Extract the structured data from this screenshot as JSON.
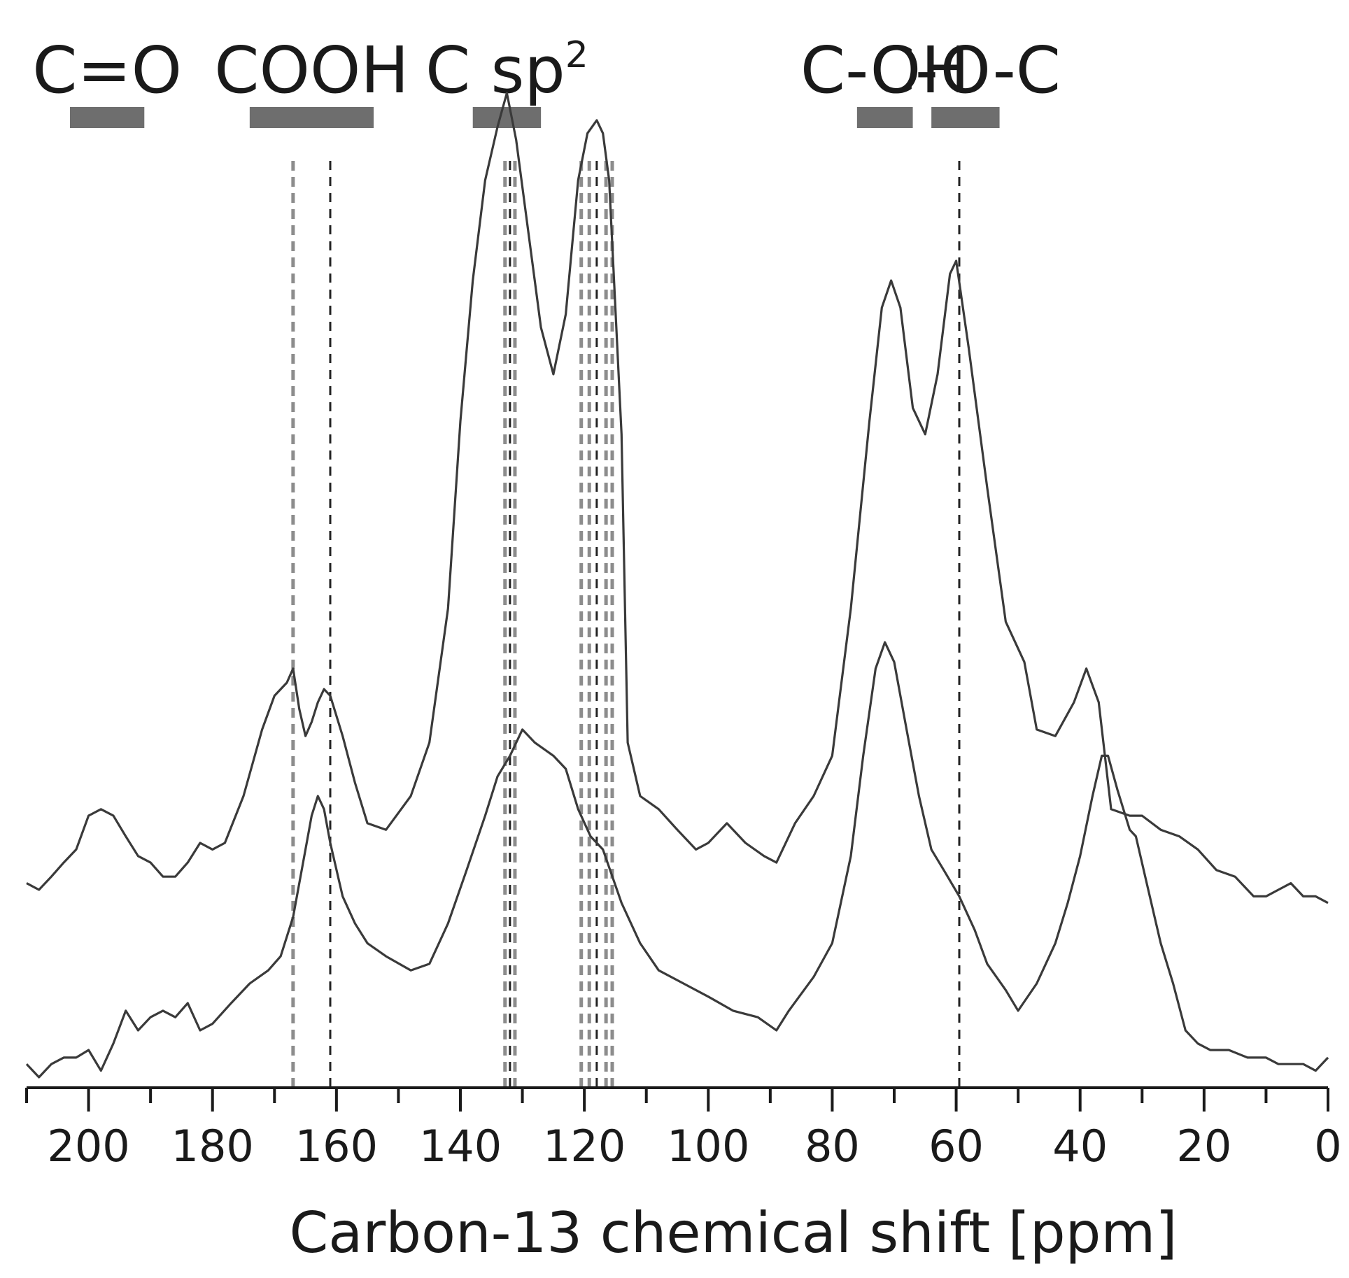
{
  "chart_data": {
    "type": "line",
    "xlabel": "Carbon-13 chemical shift [ppm]",
    "ylabel": "",
    "title": "",
    "xlim": [
      210,
      0
    ],
    "x_reversed": true,
    "x_ticks": [
      200,
      180,
      160,
      140,
      120,
      100,
      80,
      60,
      40,
      20,
      0
    ],
    "x_tick_labels": [
      "200",
      "180",
      "160",
      "140",
      "120",
      "100",
      "80",
      "60",
      "40",
      "20",
      "0"
    ],
    "x_minor_step": 10,
    "grid": false,
    "legend": "none",
    "regions": [
      {
        "label": "C=O",
        "superscript": "",
        "range": [
          203,
          191
        ],
        "color": "#6e6e6e"
      },
      {
        "label": "COOH",
        "superscript": "",
        "range": [
          174,
          154
        ],
        "color": "#6e6e6e"
      },
      {
        "label": "C sp",
        "superscript": "2",
        "range": [
          138,
          127
        ],
        "color": "#6e6e6e"
      },
      {
        "label": "C-OH",
        "superscript": "",
        "range": [
          76,
          67
        ],
        "color": "#6e6e6e"
      },
      {
        "label": "C-O-C",
        "superscript": "",
        "range": [
          64,
          53
        ],
        "color": "#6e6e6e"
      }
    ],
    "reference_lines": [
      {
        "x": 167,
        "style": "gray-dashed"
      },
      {
        "x": 161,
        "style": "black-dashed"
      },
      {
        "x": 132.8,
        "style": "gray-dashed"
      },
      {
        "x": 132,
        "style": "black-dashed"
      },
      {
        "x": 131.2,
        "style": "gray-dashed"
      },
      {
        "x": 120.5,
        "style": "gray-dashed"
      },
      {
        "x": 119.2,
        "style": "gray-dashed"
      },
      {
        "x": 118,
        "style": "black-dashed"
      },
      {
        "x": 116.5,
        "style": "gray-dashed"
      },
      {
        "x": 115.5,
        "style": "gray-dashed"
      },
      {
        "x": 59.5,
        "style": "black-dashed"
      }
    ],
    "series": [
      {
        "color": "#3a3a3a",
        "points": [
          [
            210,
            0.207
          ],
          [
            208,
            0.2
          ],
          [
            206,
            0.214
          ],
          [
            204,
            0.229
          ],
          [
            202,
            0.243
          ],
          [
            200,
            0.279
          ],
          [
            198,
            0.286
          ],
          [
            196,
            0.279
          ],
          [
            194,
            0.257
          ],
          [
            192,
            0.236
          ],
          [
            190,
            0.229
          ],
          [
            188,
            0.214
          ],
          [
            186,
            0.214
          ],
          [
            184,
            0.229
          ],
          [
            182,
            0.25
          ],
          [
            180,
            0.243
          ],
          [
            178,
            0.25
          ],
          [
            175,
            0.3
          ],
          [
            172,
            0.371
          ],
          [
            170,
            0.407
          ],
          [
            168,
            0.421
          ],
          [
            167,
            0.436
          ],
          [
            166,
            0.393
          ],
          [
            165,
            0.364
          ],
          [
            164,
            0.379
          ],
          [
            163,
            0.4
          ],
          [
            162,
            0.414
          ],
          [
            161,
            0.407
          ],
          [
            159,
            0.364
          ],
          [
            157,
            0.314
          ],
          [
            155,
            0.271
          ],
          [
            152,
            0.264
          ],
          [
            148,
            0.3
          ],
          [
            145,
            0.357
          ],
          [
            142,
            0.5
          ],
          [
            140,
            0.7
          ],
          [
            138,
            0.85
          ],
          [
            136,
            0.957
          ],
          [
            134,
            1.014
          ],
          [
            132.5,
            1.05
          ],
          [
            131,
            1.0
          ],
          [
            129,
            0.9
          ],
          [
            127,
            0.8
          ],
          [
            125,
            0.75
          ],
          [
            123,
            0.814
          ],
          [
            121,
            0.957
          ],
          [
            119.5,
            1.007
          ],
          [
            118,
            1.021
          ],
          [
            117,
            1.007
          ],
          [
            116,
            0.957
          ],
          [
            114,
            0.686
          ],
          [
            113,
            0.357
          ],
          [
            111,
            0.3
          ],
          [
            108,
            0.286
          ],
          [
            105,
            0.264
          ],
          [
            102,
            0.243
          ],
          [
            100,
            0.25
          ],
          [
            97,
            0.271
          ],
          [
            94,
            0.25
          ],
          [
            91,
            0.236
          ],
          [
            89,
            0.229
          ],
          [
            86,
            0.271
          ],
          [
            83,
            0.3
          ],
          [
            80,
            0.343
          ],
          [
            77,
            0.5
          ],
          [
            74,
            0.7
          ],
          [
            72,
            0.821
          ],
          [
            70.5,
            0.85
          ],
          [
            69,
            0.821
          ],
          [
            67,
            0.714
          ],
          [
            65,
            0.686
          ],
          [
            63,
            0.75
          ],
          [
            61,
            0.857
          ],
          [
            60,
            0.871
          ],
          [
            58,
            0.779
          ],
          [
            55,
            0.629
          ],
          [
            52,
            0.486
          ],
          [
            49,
            0.443
          ],
          [
            47,
            0.371
          ],
          [
            44,
            0.364
          ],
          [
            41,
            0.4
          ],
          [
            39,
            0.436
          ],
          [
            37,
            0.4
          ],
          [
            35,
            0.286
          ],
          [
            32,
            0.279
          ],
          [
            30,
            0.279
          ],
          [
            27,
            0.264
          ],
          [
            24,
            0.257
          ],
          [
            21,
            0.243
          ],
          [
            18,
            0.221
          ],
          [
            15,
            0.214
          ],
          [
            12,
            0.193
          ],
          [
            10,
            0.193
          ],
          [
            8,
            0.2
          ],
          [
            6,
            0.207
          ],
          [
            4,
            0.193
          ],
          [
            2,
            0.193
          ],
          [
            0,
            0.186
          ]
        ]
      },
      {
        "color": "#3a3a3a",
        "points": [
          [
            210,
            0.014
          ],
          [
            208,
            0.0
          ],
          [
            206,
            0.014
          ],
          [
            204,
            0.021
          ],
          [
            202,
            0.021
          ],
          [
            200,
            0.029
          ],
          [
            198,
            0.007
          ],
          [
            196,
            0.036
          ],
          [
            194,
            0.071
          ],
          [
            192,
            0.05
          ],
          [
            190,
            0.064
          ],
          [
            188,
            0.071
          ],
          [
            186,
            0.064
          ],
          [
            184,
            0.079
          ],
          [
            182,
            0.05
          ],
          [
            180,
            0.057
          ],
          [
            177,
            0.079
          ],
          [
            174,
            0.1
          ],
          [
            171,
            0.114
          ],
          [
            169,
            0.129
          ],
          [
            167,
            0.171
          ],
          [
            165,
            0.243
          ],
          [
            164,
            0.279
          ],
          [
            163,
            0.3
          ],
          [
            162,
            0.286
          ],
          [
            161,
            0.25
          ],
          [
            159,
            0.193
          ],
          [
            157,
            0.164
          ],
          [
            155,
            0.143
          ],
          [
            152,
            0.129
          ],
          [
            148,
            0.114
          ],
          [
            145,
            0.121
          ],
          [
            142,
            0.164
          ],
          [
            139,
            0.221
          ],
          [
            136,
            0.279
          ],
          [
            134,
            0.321
          ],
          [
            132,
            0.343
          ],
          [
            130,
            0.371
          ],
          [
            128,
            0.357
          ],
          [
            125,
            0.343
          ],
          [
            123,
            0.329
          ],
          [
            121,
            0.286
          ],
          [
            119,
            0.257
          ],
          [
            117,
            0.243
          ],
          [
            114,
            0.186
          ],
          [
            111,
            0.143
          ],
          [
            108,
            0.114
          ],
          [
            104,
            0.1
          ],
          [
            100,
            0.086
          ],
          [
            96,
            0.071
          ],
          [
            92,
            0.064
          ],
          [
            89,
            0.05
          ],
          [
            87,
            0.071
          ],
          [
            83,
            0.107
          ],
          [
            80,
            0.143
          ],
          [
            77,
            0.236
          ],
          [
            75,
            0.343
          ],
          [
            73,
            0.436
          ],
          [
            71.5,
            0.464
          ],
          [
            70,
            0.443
          ],
          [
            68,
            0.371
          ],
          [
            66,
            0.3
          ],
          [
            64,
            0.243
          ],
          [
            62,
            0.221
          ],
          [
            59.5,
            0.193
          ],
          [
            57,
            0.157
          ],
          [
            55,
            0.121
          ],
          [
            52,
            0.093
          ],
          [
            50,
            0.071
          ],
          [
            47,
            0.1
          ],
          [
            44,
            0.143
          ],
          [
            42,
            0.186
          ],
          [
            40,
            0.236
          ],
          [
            38,
            0.3
          ],
          [
            36.5,
            0.343
          ],
          [
            35.5,
            0.343
          ],
          [
            34,
            0.307
          ],
          [
            32,
            0.264
          ],
          [
            31,
            0.257
          ],
          [
            29,
            0.2
          ],
          [
            27,
            0.143
          ],
          [
            25,
            0.1
          ],
          [
            23,
            0.05
          ],
          [
            21,
            0.036
          ],
          [
            19,
            0.029
          ],
          [
            16,
            0.029
          ],
          [
            13,
            0.021
          ],
          [
            10,
            0.021
          ],
          [
            8,
            0.014
          ],
          [
            6,
            0.014
          ],
          [
            4,
            0.014
          ],
          [
            2,
            0.007
          ],
          [
            0,
            0.021
          ]
        ]
      }
    ]
  }
}
